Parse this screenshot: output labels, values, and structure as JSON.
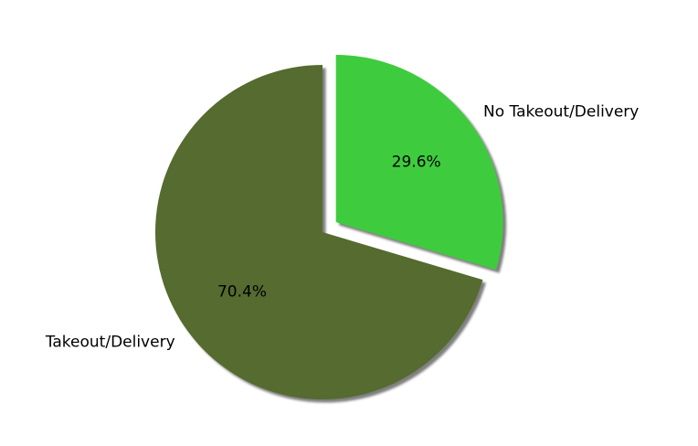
{
  "chart_data": {
    "type": "pie",
    "title": "",
    "start_angle_deg": 90,
    "direction": "clockwise",
    "shadow": true,
    "autopct_format": "%1.1f%%",
    "slices": [
      {
        "label": "No Takeout/Delivery",
        "value": 29.6,
        "pct_label": "29.6%",
        "color": "#3ecc3e",
        "exploded": true
      },
      {
        "label": "Takeout/Delivery",
        "value": 70.4,
        "pct_label": "70.4%",
        "color": "#556b2f",
        "exploded": false
      }
    ]
  }
}
